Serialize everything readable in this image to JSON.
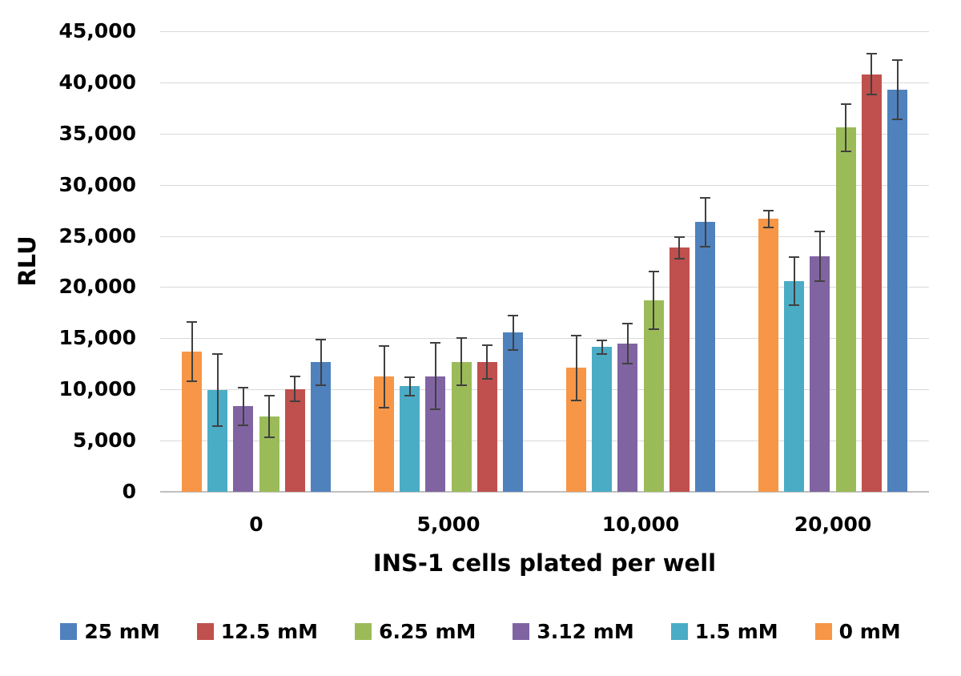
{
  "chart_data": {
    "type": "bar",
    "title": "",
    "ylabel": "RLU",
    "xlabel": "INS-1 cells plated per well",
    "categories": [
      "0",
      "5,000",
      "10,000",
      "20,000"
    ],
    "ylim": [
      0,
      45000
    ],
    "y_tick_step": 5000,
    "y_ticks": [
      "0",
      "5,000",
      "10,000",
      "15,000",
      "20,000",
      "25,000",
      "30,000",
      "35,000",
      "40,000",
      "45,000"
    ],
    "grid": true,
    "legend_position": "bottom",
    "legend_items": [
      "25 mM",
      "12.5 mM",
      "6.25 mM",
      "3.12 mM",
      "1.5 mM",
      "0 mM"
    ],
    "series": [
      {
        "name": "0 mM",
        "color": "#F79646",
        "values": [
          13700,
          11250,
          12100,
          26650
        ],
        "errors": [
          2900,
          3000,
          3200,
          850
        ]
      },
      {
        "name": "1.5 mM",
        "color": "#4BACC6",
        "values": [
          9950,
          10300,
          14150,
          20600
        ],
        "errors": [
          3500,
          900,
          650,
          2350
        ]
      },
      {
        "name": "3.12 mM",
        "color": "#8064A2",
        "values": [
          8350,
          11300,
          14450,
          23000
        ],
        "errors": [
          1850,
          3250,
          1950,
          2450
        ]
      },
      {
        "name": "6.25 mM",
        "color": "#9BBB59",
        "values": [
          7350,
          12700,
          18700,
          35600
        ],
        "errors": [
          2050,
          2300,
          2800,
          2300
        ]
      },
      {
        "name": "12.5 mM",
        "color": "#C0504D",
        "values": [
          10050,
          12650,
          23850,
          40800
        ],
        "errors": [
          1200,
          1650,
          1050,
          2000
        ]
      },
      {
        "name": "25 mM",
        "color": "#4F81BD",
        "values": [
          12650,
          15550,
          26350,
          39300
        ],
        "errors": [
          2250,
          1700,
          2400,
          2900
        ]
      }
    ]
  },
  "style": {
    "grid_color": "#D9D9D9",
    "axis_color": "#BFBFBF",
    "error_bar_color": "#404040",
    "text_color": "#000000"
  }
}
